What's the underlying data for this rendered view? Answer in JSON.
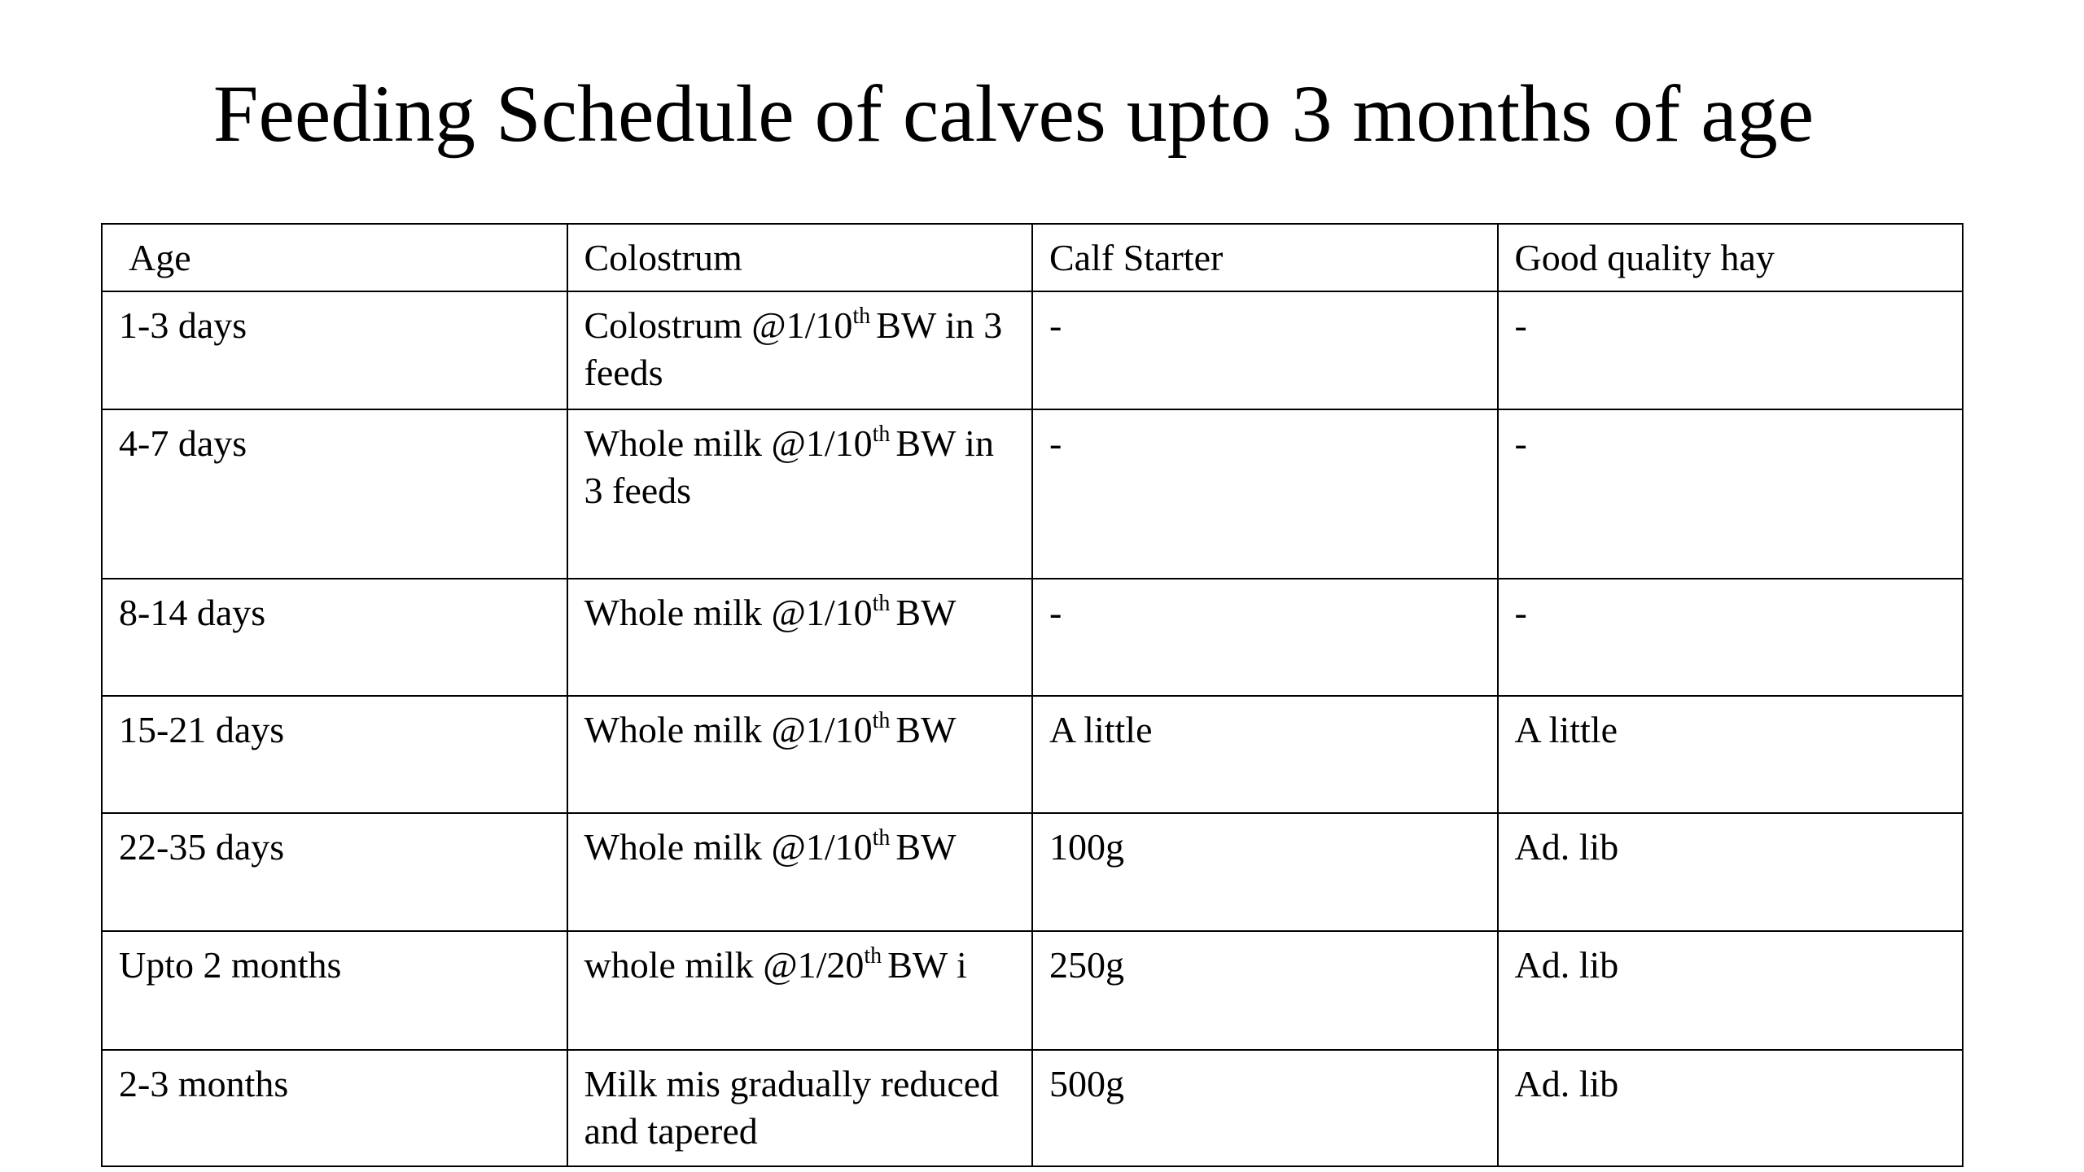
{
  "title": "Feeding Schedule of calves upto 3 months of age",
  "table": {
    "header": [
      "Age",
      "Colostrum",
      "Calf Starter",
      "Good quality hay"
    ],
    "rows": [
      [
        "1-3 days",
        {
          "before": "Colostrum @1/10",
          "sup": "th",
          "after": "BW in 3 feeds"
        },
        "-",
        "-"
      ],
      [
        "4-7 days",
        {
          "before": "Whole milk @1/10",
          "sup": "th",
          "after": "BW in 3 feeds"
        },
        "-",
        "-"
      ],
      [
        "8-14 days",
        {
          "before": "Whole milk @1/10",
          "sup": "th",
          "after": "BW"
        },
        "-",
        "-"
      ],
      [
        "15-21 days",
        {
          "before": "Whole milk @1/10",
          "sup": "th",
          "after": "BW"
        },
        "A little",
        "A little"
      ],
      [
        "22-35 days",
        {
          "before": "Whole milk @1/10",
          "sup": "th",
          "after": "BW"
        },
        "100g",
        "Ad. lib"
      ],
      [
        "Upto 2 months",
        {
          "before": "whole milk @1/20",
          "sup": "th",
          "after": "BW i"
        },
        "250g",
        "Ad. lib"
      ],
      [
        "2-3 months",
        "Milk mis gradually reduced and tapered",
        "500g",
        "Ad. lib"
      ]
    ]
  }
}
